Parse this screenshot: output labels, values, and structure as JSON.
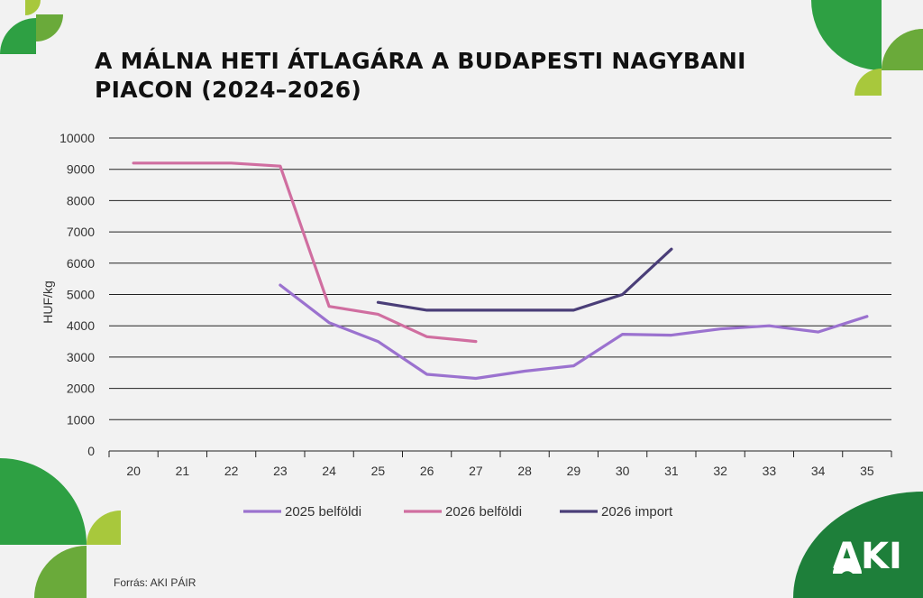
{
  "title_lines": [
    "A MÁLNA HETI ÁTLAGÁRA A BUDAPESTI NAGYBANI",
    "PIACON (2024–2026)"
  ],
  "source": "Forrás: AKI PÁIR",
  "logo_text": "AKI",
  "colors": {
    "background": "#f2f2f2",
    "green_dark": "#1e7f3a",
    "green_mid": "#2ea043",
    "green_light": "#a8c83c",
    "grid": "#222222"
  },
  "chart_data": {
    "type": "line",
    "title": "A MÁLNA HETI ÁTLAGÁRA A BUDAPESTI NAGYBANI PIACON (2024–2026)",
    "xlabel": "",
    "ylabel": "HUF/kg",
    "ylim": [
      0,
      10000
    ],
    "yticks": [
      0,
      1000,
      2000,
      3000,
      4000,
      5000,
      6000,
      7000,
      8000,
      9000,
      10000
    ],
    "x": [
      20,
      21,
      22,
      23,
      24,
      25,
      26,
      27,
      28,
      29,
      30,
      31,
      32,
      33,
      34,
      35
    ],
    "grid": true,
    "legend_position": "bottom",
    "series": [
      {
        "name": "2025 belföldi",
        "color": "#9b72cf",
        "values": [
          null,
          null,
          null,
          5300,
          4100,
          3500,
          2450,
          2320,
          2550,
          2720,
          3730,
          3700,
          3900,
          4000,
          3800,
          4300
        ]
      },
      {
        "name": "2026 belföldi",
        "color": "#d06ea0",
        "values": [
          9200,
          9200,
          9200,
          9100,
          4620,
          4370,
          3650,
          3500,
          null,
          null,
          null,
          null,
          null,
          null,
          null,
          null
        ]
      },
      {
        "name": "2026 import",
        "color": "#4a3e78",
        "values": [
          null,
          null,
          null,
          null,
          null,
          4750,
          4500,
          4500,
          4500,
          4500,
          5000,
          6450,
          null,
          null,
          null,
          null
        ]
      }
    ]
  }
}
